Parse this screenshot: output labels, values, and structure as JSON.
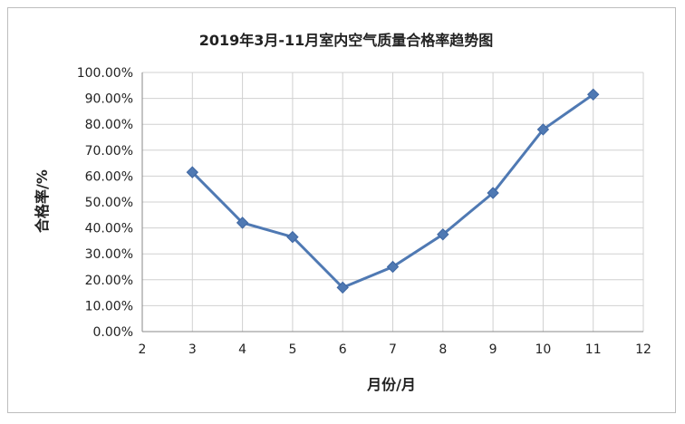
{
  "chart_data": {
    "type": "line",
    "title": "2019年3月-11月室内空气质量合格率趋势图",
    "xlabel": "月份/月",
    "ylabel": "合格率/%",
    "xlim": [
      2,
      12
    ],
    "ylim": [
      0,
      100
    ],
    "x_ticks": [
      2,
      3,
      4,
      5,
      6,
      7,
      8,
      9,
      10,
      11,
      12
    ],
    "y_ticks": [
      0,
      10,
      20,
      30,
      40,
      50,
      60,
      70,
      80,
      90,
      100
    ],
    "x_tick_labels": [
      "2",
      "3",
      "4",
      "5",
      "6",
      "7",
      "8",
      "9",
      "10",
      "11",
      "12"
    ],
    "y_tick_labels": [
      "0.00%",
      "10.00%",
      "20.00%",
      "30.00%",
      "40.00%",
      "50.00%",
      "60.00%",
      "70.00%",
      "80.00%",
      "90.00%",
      "100.00%"
    ],
    "grid": true,
    "series": [
      {
        "x": [
          3,
          4,
          5,
          6,
          7,
          8,
          9,
          10,
          11
        ],
        "values": [
          61.5,
          42.0,
          36.5,
          17.0,
          25.0,
          37.5,
          53.5,
          78.0,
          91.5
        ]
      }
    ],
    "colors": {
      "series": "#4f79b3",
      "grid": "#d0d0d0",
      "axis": "#888888"
    }
  }
}
